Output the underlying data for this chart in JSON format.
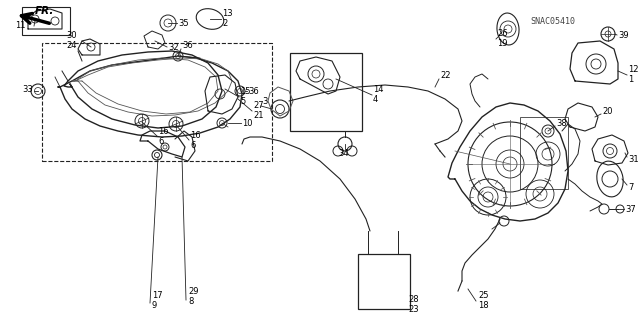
{
  "bg_color": "#ffffff",
  "diagram_code": "SNAC05410",
  "fr_arrow_text": "FR.",
  "figsize": [
    6.4,
    3.19
  ],
  "dpi": 100,
  "line_color": "#222222",
  "detail_color": "#555555"
}
